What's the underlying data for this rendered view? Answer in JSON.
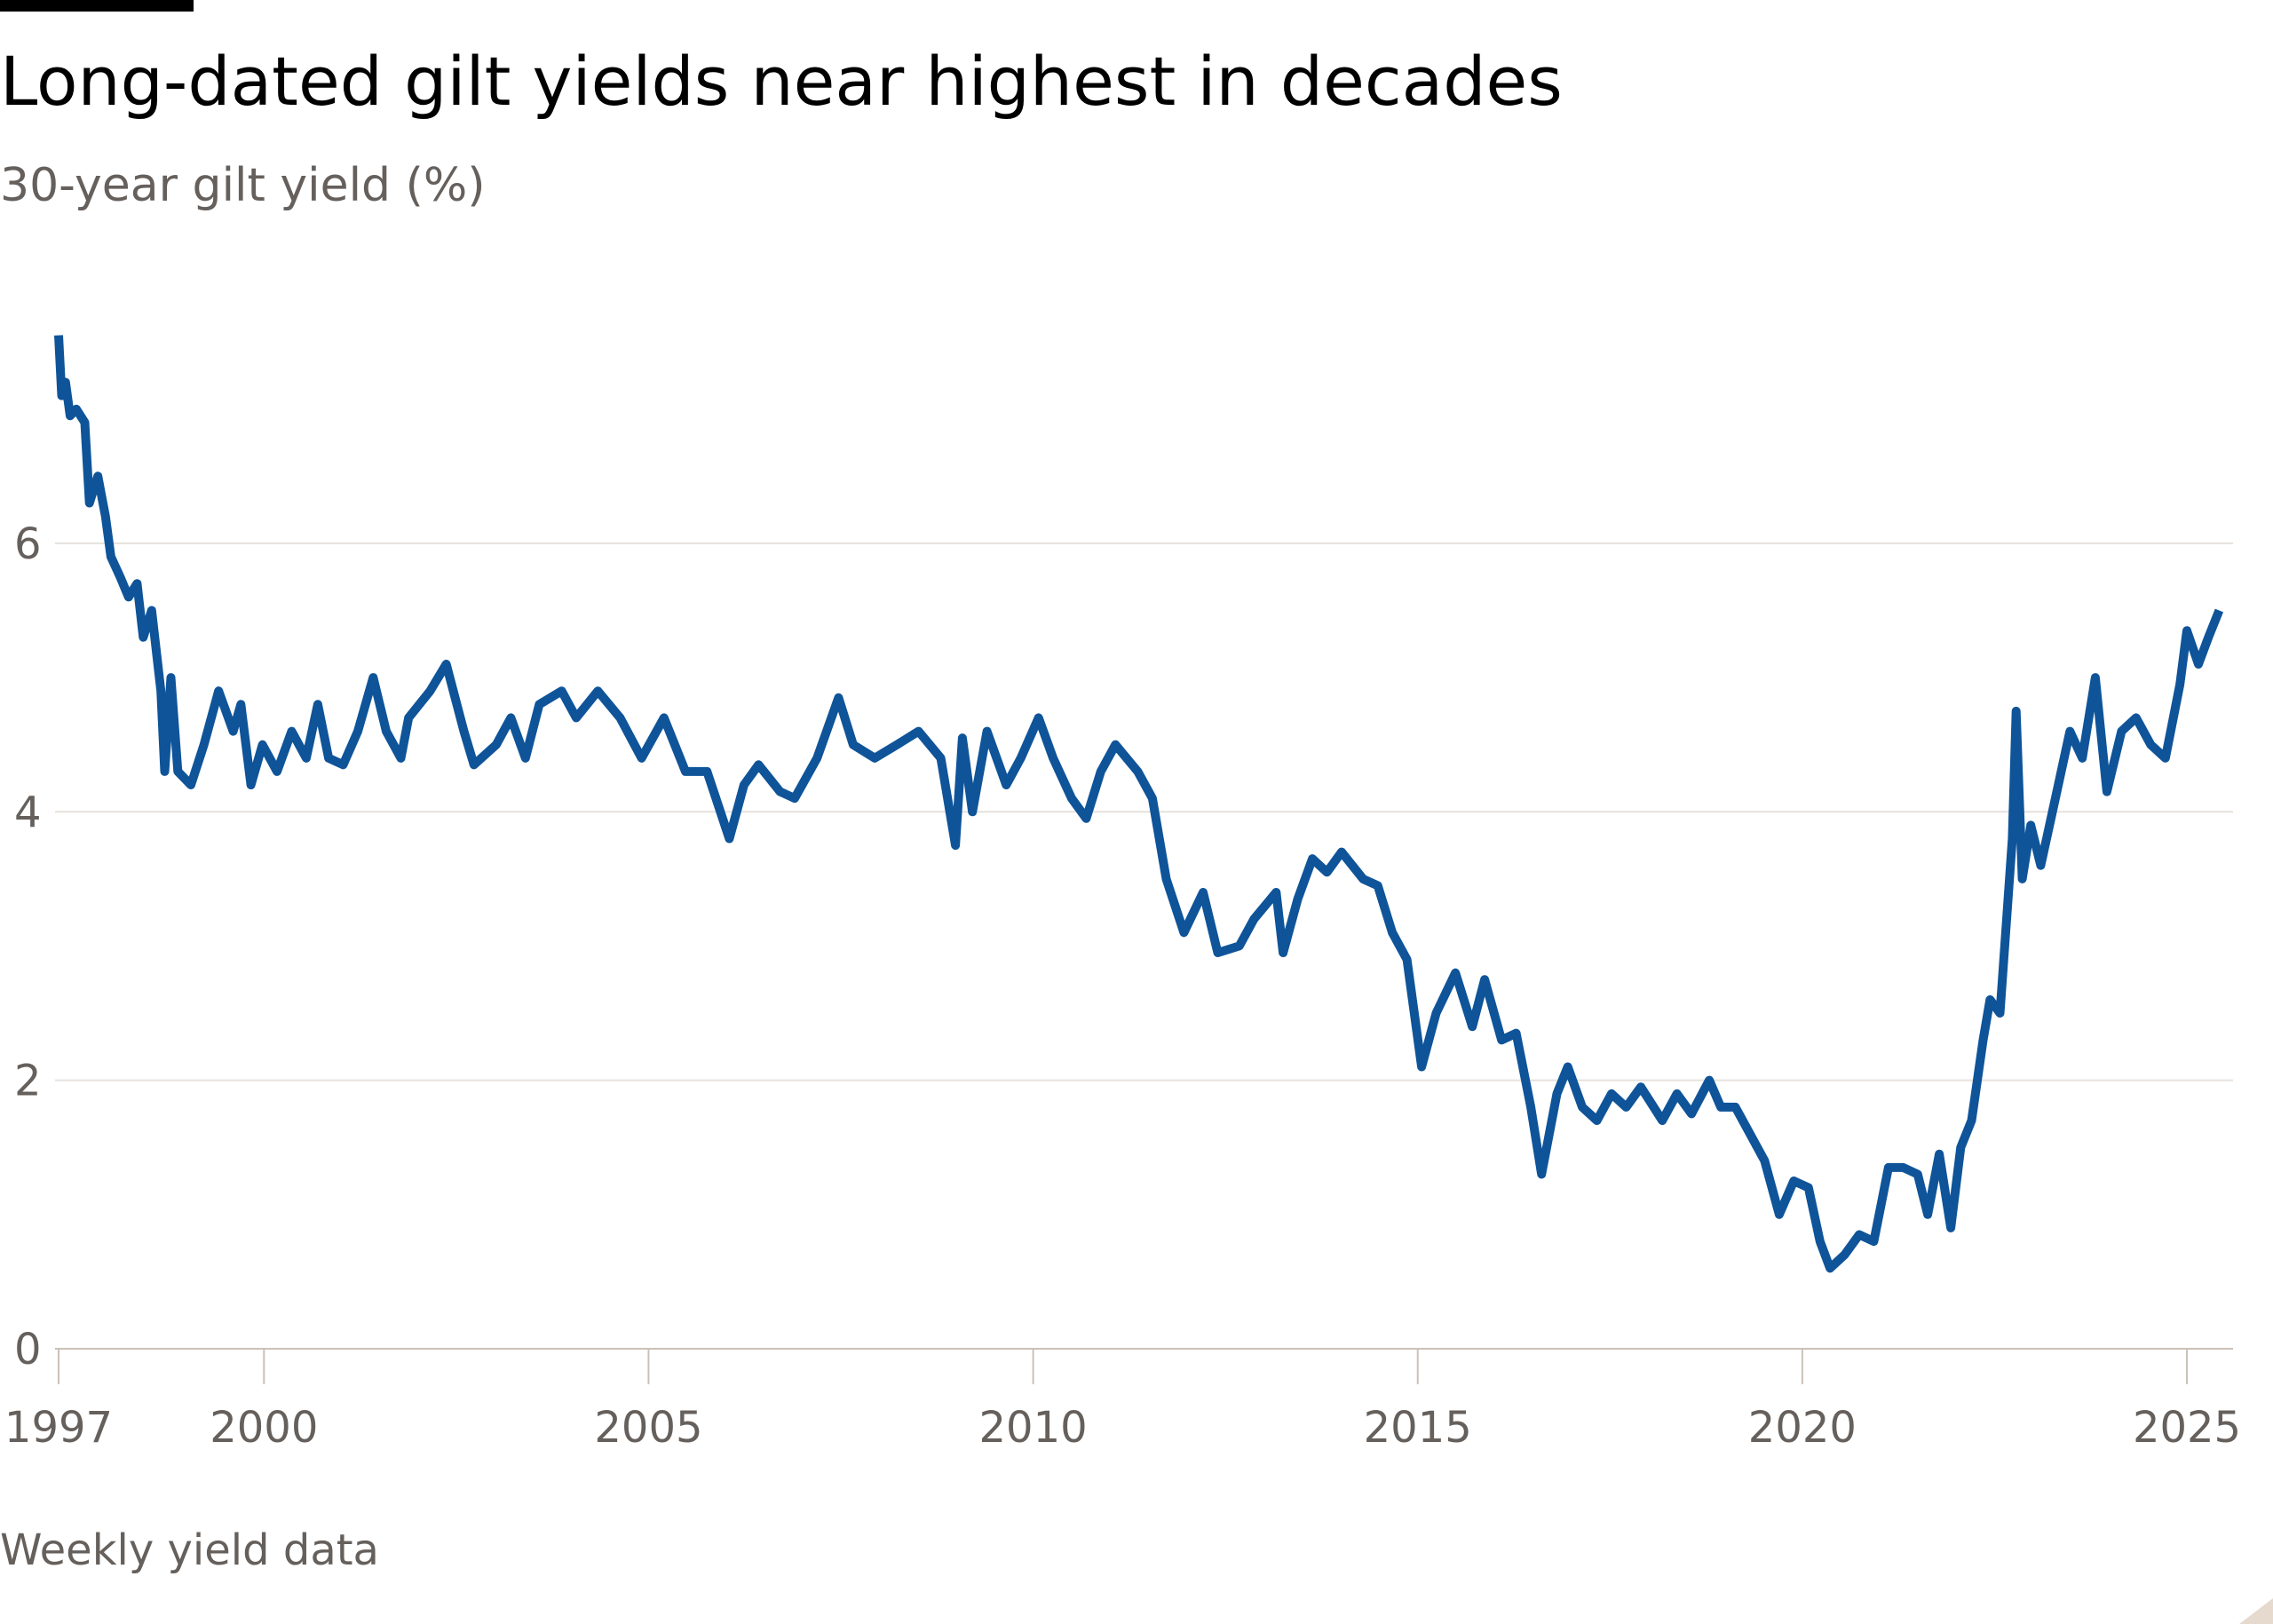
{
  "chart_data": {
    "type": "line",
    "title": "Long-dated gilt yields near highest in decades",
    "subtitle": "30-year gilt yield (%)",
    "footnote": "Weekly yield data",
    "xlim": [
      1997.33,
      2025.6
    ],
    "xticks": [
      {
        "value": 1997.33,
        "label": "1997"
      },
      2000,
      2005,
      2010,
      2015,
      2020,
      2025
    ],
    "ylim": [
      0,
      7.6
    ],
    "yticks": [
      0,
      2,
      4,
      6
    ],
    "grid": true,
    "series": [
      {
        "name": "30-year gilt yield",
        "color": "#0f5499",
        "x": [
          1997.33,
          1997.37,
          1997.42,
          1997.48,
          1997.56,
          1997.67,
          1997.73,
          1997.84,
          1997.94,
          1998.01,
          1998.13,
          1998.24,
          1998.35,
          1998.43,
          1998.54,
          1998.66,
          1998.71,
          1998.79,
          1998.88,
          1999.05,
          1999.22,
          1999.41,
          1999.6,
          1999.7,
          1999.83,
          1999.98,
          2000.17,
          2000.36,
          2000.55,
          2000.7,
          2000.84,
          2001.03,
          2001.22,
          2001.42,
          2001.59,
          2001.78,
          2001.88,
          2002.16,
          2002.37,
          2002.6,
          2002.73,
          2003.02,
          2003.21,
          2003.4,
          2003.58,
          2003.87,
          2004.06,
          2004.34,
          2004.63,
          2004.91,
          2005.2,
          2005.48,
          2005.76,
          2006.05,
          2006.24,
          2006.43,
          2006.71,
          2006.9,
          2007.19,
          2007.47,
          2007.66,
          2007.94,
          2008.23,
          2008.51,
          2008.8,
          2008.99,
          2009.08,
          2009.21,
          2009.4,
          2009.65,
          2009.84,
          2010.07,
          2010.26,
          2010.5,
          2010.69,
          2010.88,
          2011.07,
          2011.36,
          2011.55,
          2011.73,
          2011.96,
          2012.21,
          2012.4,
          2012.68,
          2012.87,
          2013.16,
          2013.25,
          2013.44,
          2013.63,
          2013.82,
          2014.01,
          2014.29,
          2014.48,
          2014.67,
          2014.86,
          2015.05,
          2015.24,
          2015.49,
          2015.71,
          2015.87,
          2016.09,
          2016.28,
          2016.47,
          2016.61,
          2016.81,
          2016.95,
          2017.14,
          2017.33,
          2017.52,
          2017.71,
          2017.9,
          2018.18,
          2018.37,
          2018.56,
          2018.79,
          2018.94,
          2019.13,
          2019.32,
          2019.51,
          2019.7,
          2019.89,
          2020.08,
          2020.23,
          2020.36,
          2020.55,
          2020.74,
          2020.93,
          2021.12,
          2021.31,
          2021.5,
          2021.63,
          2021.78,
          2021.93,
          2022.06,
          2022.2,
          2022.35,
          2022.44,
          2022.57,
          2022.73,
          2022.78,
          2022.86,
          2022.97,
          2023.1,
          2023.29,
          2023.48,
          2023.64,
          2023.81,
          2023.96,
          2024.15,
          2024.34,
          2024.53,
          2024.72,
          2024.91,
          2025.0,
          2025.15,
          2025.28,
          2025.42
        ],
        "values": [
          7.55,
          7.1,
          7.2,
          6.95,
          7.0,
          6.9,
          6.3,
          6.5,
          6.2,
          5.9,
          5.75,
          5.6,
          5.7,
          5.3,
          5.5,
          4.9,
          4.3,
          5.0,
          4.3,
          4.2,
          4.5,
          4.9,
          4.6,
          4.8,
          4.2,
          4.5,
          4.3,
          4.6,
          4.4,
          4.8,
          4.4,
          4.35,
          4.6,
          5.0,
          4.6,
          4.4,
          4.7,
          4.9,
          5.1,
          4.6,
          4.35,
          4.5,
          4.7,
          4.4,
          4.8,
          4.9,
          4.7,
          4.9,
          4.7,
          4.4,
          4.7,
          4.3,
          4.3,
          3.8,
          4.2,
          4.35,
          4.15,
          4.1,
          4.4,
          4.85,
          4.5,
          4.4,
          4.5,
          4.6,
          4.4,
          3.75,
          4.55,
          4.0,
          4.6,
          4.2,
          4.4,
          4.7,
          4.4,
          4.1,
          3.95,
          4.3,
          4.5,
          4.3,
          4.1,
          3.5,
          3.1,
          3.4,
          2.95,
          3.0,
          3.2,
          3.4,
          2.95,
          3.35,
          3.65,
          3.55,
          3.7,
          3.5,
          3.45,
          3.1,
          2.9,
          2.1,
          2.5,
          2.8,
          2.4,
          2.75,
          2.3,
          2.35,
          1.8,
          1.3,
          1.9,
          2.1,
          1.8,
          1.7,
          1.9,
          1.8,
          1.95,
          1.7,
          1.9,
          1.75,
          2.0,
          1.8,
          1.8,
          1.6,
          1.4,
          1.0,
          1.25,
          1.2,
          0.8,
          0.6,
          0.7,
          0.85,
          0.8,
          1.35,
          1.35,
          1.3,
          1.0,
          1.45,
          0.9,
          1.5,
          1.7,
          2.3,
          2.6,
          2.5,
          3.8,
          4.75,
          3.5,
          3.9,
          3.6,
          4.1,
          4.6,
          4.4,
          5.0,
          4.15,
          4.6,
          4.7,
          4.5,
          4.4,
          4.95,
          5.35,
          5.1,
          5.3,
          5.5
        ]
      }
    ]
  }
}
